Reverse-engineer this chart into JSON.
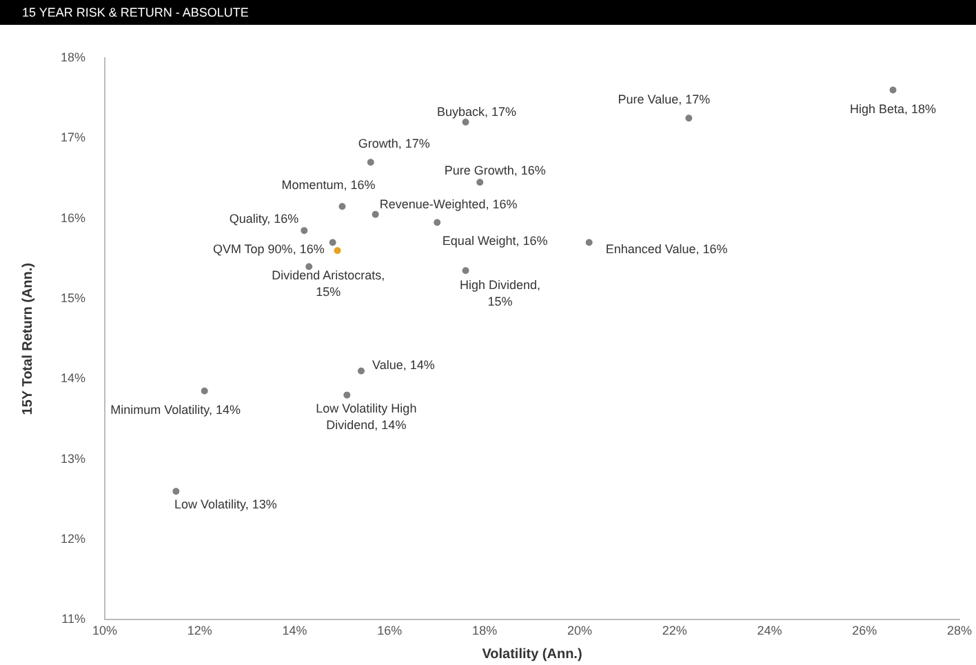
{
  "chart_data": {
    "type": "scatter",
    "title": "15 YEAR RISK & RETURN - ABSOLUTE",
    "xlabel": "Volatility (Ann.)",
    "ylabel": "15Y Total Return (Ann.)",
    "xlim": [
      10,
      28
    ],
    "xticks": [
      {
        "value": 10,
        "label": "10%"
      },
      {
        "value": 12,
        "label": "12%"
      },
      {
        "value": 14,
        "label": "14%"
      },
      {
        "value": 16,
        "label": "16%"
      },
      {
        "value": 18,
        "label": "18%"
      },
      {
        "value": 20,
        "label": "20%"
      },
      {
        "value": 22,
        "label": "22%"
      },
      {
        "value": 24,
        "label": "24%"
      },
      {
        "value": 26,
        "label": "26%"
      },
      {
        "value": 28,
        "label": "28%"
      }
    ],
    "ylim": [
      11,
      18
    ],
    "yticks": [
      {
        "value": 11,
        "label": "11%"
      },
      {
        "value": 12,
        "label": "12%"
      },
      {
        "value": 13,
        "label": "13%"
      },
      {
        "value": 14,
        "label": "14%"
      },
      {
        "value": 15,
        "label": "15%"
      },
      {
        "value": 16,
        "label": "16%"
      },
      {
        "value": 17,
        "label": "17%"
      },
      {
        "value": 18,
        "label": "18%"
      }
    ],
    "grid": false,
    "marker": "circle",
    "series": [
      {
        "color": "#808080",
        "x": [
          26.6,
          22.3,
          17.6,
          15.6,
          17.9,
          15.0,
          15.7,
          14.2,
          17.0,
          14.8,
          14.3,
          20.2,
          17.6,
          15.4,
          15.1,
          12.1,
          11.5
        ],
        "values": [
          17.6,
          17.25,
          17.2,
          16.7,
          16.45,
          16.15,
          16.05,
          15.85,
          15.95,
          15.7,
          15.4,
          15.7,
          15.35,
          14.1,
          13.8,
          13.85,
          12.6
        ],
        "value_labels": [
          "High Beta, 18%",
          "Pure Value, 17%",
          "Buyback, 17%",
          "Growth, 17%",
          "Pure Growth, 16%",
          "Momentum, 16%",
          "Revenue-Weighted, 16%",
          "Quality, 16%",
          "Equal Weight, 16%",
          "QVM Top 90%, 16%",
          "Dividend Aristocrats, 15%",
          "Enhanced Value, 16%",
          "High Dividend, 15%",
          "Value, 14%",
          "Low Volatility High Dividend, 14%",
          "Minimum Volatility, 14%",
          "Low Volatility, 13%"
        ]
      },
      {
        "color": "#e8a020",
        "x": [
          14.9
        ],
        "values": [
          15.6
        ]
      }
    ]
  }
}
